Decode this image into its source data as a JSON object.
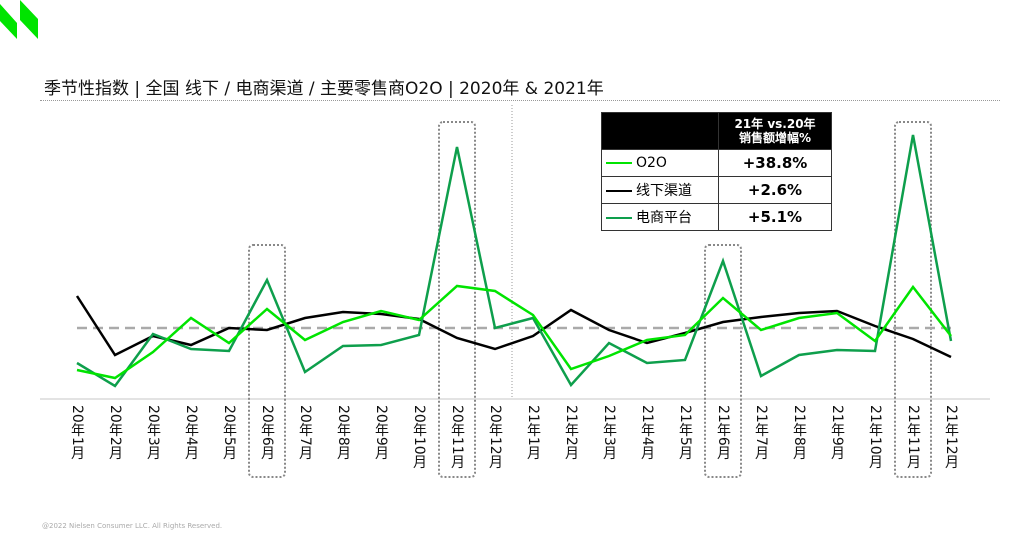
{
  "title": "季节性指数 | 全国 线下 / 电商渠道 / 主要零售商O2O | 2020年 & 2021年",
  "footer": "@2022 Nielsen Consumer LLC. All Rights Reserved.",
  "legend_table": {
    "header": "21年 vs.20年",
    "header2": "销售额增幅%",
    "rows": [
      {
        "label": "O2O",
        "value": "+38.8%",
        "color": "#00e400"
      },
      {
        "label": "线下渠道",
        "value": "+2.6%",
        "color": "#000000"
      },
      {
        "label": "电商平台",
        "value": "+5.1%",
        "color": "#0e9f4c"
      }
    ]
  },
  "chart_data": {
    "type": "line",
    "title": "季节性指数 | 全国 线下 / 电商渠道 / 主要零售商O2O | 2020年 & 2021年",
    "xlabel": "",
    "ylabel": "",
    "baseline": 100,
    "ylim": [
      65,
      210
    ],
    "grid": false,
    "highlighted": [
      "20年6月",
      "20年11月",
      "21年6月",
      "21年11月"
    ],
    "categories": [
      "20年1月",
      "20年2月",
      "20年3月",
      "20年4月",
      "20年5月",
      "20年6月",
      "20年7月",
      "20年8月",
      "20年9月",
      "20年10月",
      "20年11月",
      "20年12月",
      "21年1月",
      "21年2月",
      "21年3月",
      "21年4月",
      "21年5月",
      "21年6月",
      "21年7月",
      "21年8月",
      "21年9月",
      "21年10月",
      "21年11月",
      "21年12月"
    ],
    "series": [
      {
        "name": "线下渠道",
        "color": "#000000",
        "values": [
          116,
          86.5,
          96,
          91.5,
          100,
          99,
          105,
          108,
          107,
          104.5,
          95,
          89.5,
          96,
          109,
          99,
          92.5,
          97.5,
          103,
          105.5,
          107.5,
          108.5,
          101,
          94.5,
          85.5
        ]
      },
      {
        "name": "电商平台",
        "color": "#0e9f4c",
        "values": [
          82.5,
          71,
          97,
          89.5,
          88.5,
          124,
          78,
          91,
          91.5,
          96.5,
          190.5,
          100,
          105,
          71.5,
          92.5,
          82.5,
          84,
          133.5,
          76,
          86.5,
          89,
          88.5,
          196.5,
          93.5
        ]
      },
      {
        "name": "O2O",
        "color": "#00e400",
        "values": [
          79,
          75,
          88,
          105,
          92.5,
          109.5,
          94,
          103,
          108.5,
          104,
          121,
          118.5,
          106.5,
          79.5,
          86,
          94,
          96.5,
          115,
          99,
          105,
          107.5,
          93.5,
          120.5,
          96
        ]
      }
    ]
  }
}
